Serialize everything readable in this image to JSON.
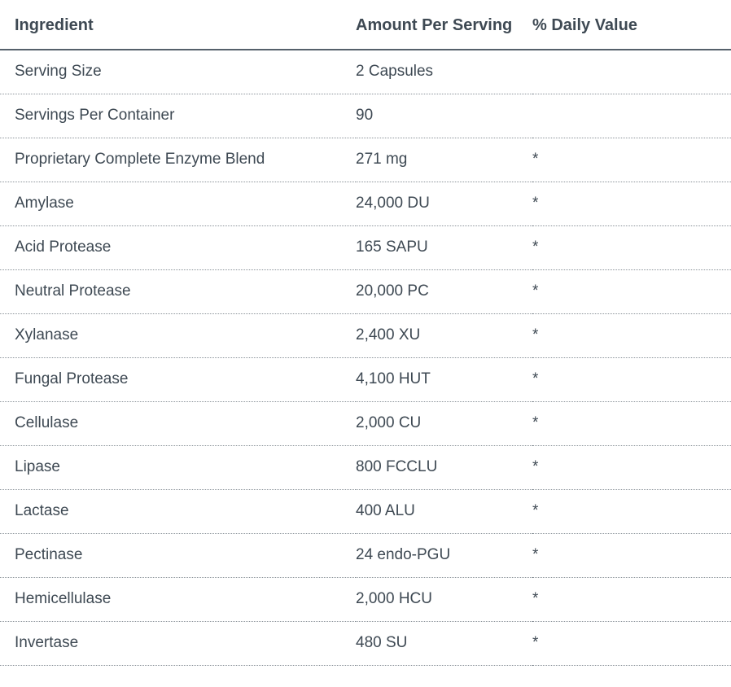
{
  "table": {
    "headers": {
      "ingredient": "Ingredient",
      "amount": "Amount Per Serving",
      "daily_value": "% Daily Value"
    },
    "rows": [
      {
        "ingredient": "Serving Size",
        "amount": "2 Capsules",
        "daily_value": ""
      },
      {
        "ingredient": "Servings Per Container",
        "amount": "90",
        "daily_value": ""
      },
      {
        "ingredient": "Proprietary Complete Enzyme Blend",
        "amount": "271 mg",
        "daily_value": "*"
      },
      {
        "ingredient": "Amylase",
        "amount": "24,000 DU",
        "daily_value": "*"
      },
      {
        "ingredient": "Acid Protease",
        "amount": "165 SAPU",
        "daily_value": "*"
      },
      {
        "ingredient": "Neutral Protease",
        "amount": "20,000 PC",
        "daily_value": "*"
      },
      {
        "ingredient": "Xylanase",
        "amount": "2,400 XU",
        "daily_value": "*"
      },
      {
        "ingredient": "Fungal Protease",
        "amount": "4,100 HUT",
        "daily_value": "*"
      },
      {
        "ingredient": "Cellulase",
        "amount": "2,000 CU",
        "daily_value": "*"
      },
      {
        "ingredient": "Lipase",
        "amount": "800 FCCLU",
        "daily_value": "*"
      },
      {
        "ingredient": "Lactase",
        "amount": "400 ALU",
        "daily_value": "*"
      },
      {
        "ingredient": "Pectinase",
        "amount": "24 endo-PGU",
        "daily_value": "*"
      },
      {
        "ingredient": "Hemicellulase",
        "amount": "2,000 HCU",
        "daily_value": "*"
      },
      {
        "ingredient": "Invertase",
        "amount": "480 SU",
        "daily_value": "*"
      }
    ],
    "colors": {
      "text": "#3e4953",
      "header_border": "#55606b",
      "row_border": "#8a9299",
      "background": "#ffffff"
    }
  }
}
